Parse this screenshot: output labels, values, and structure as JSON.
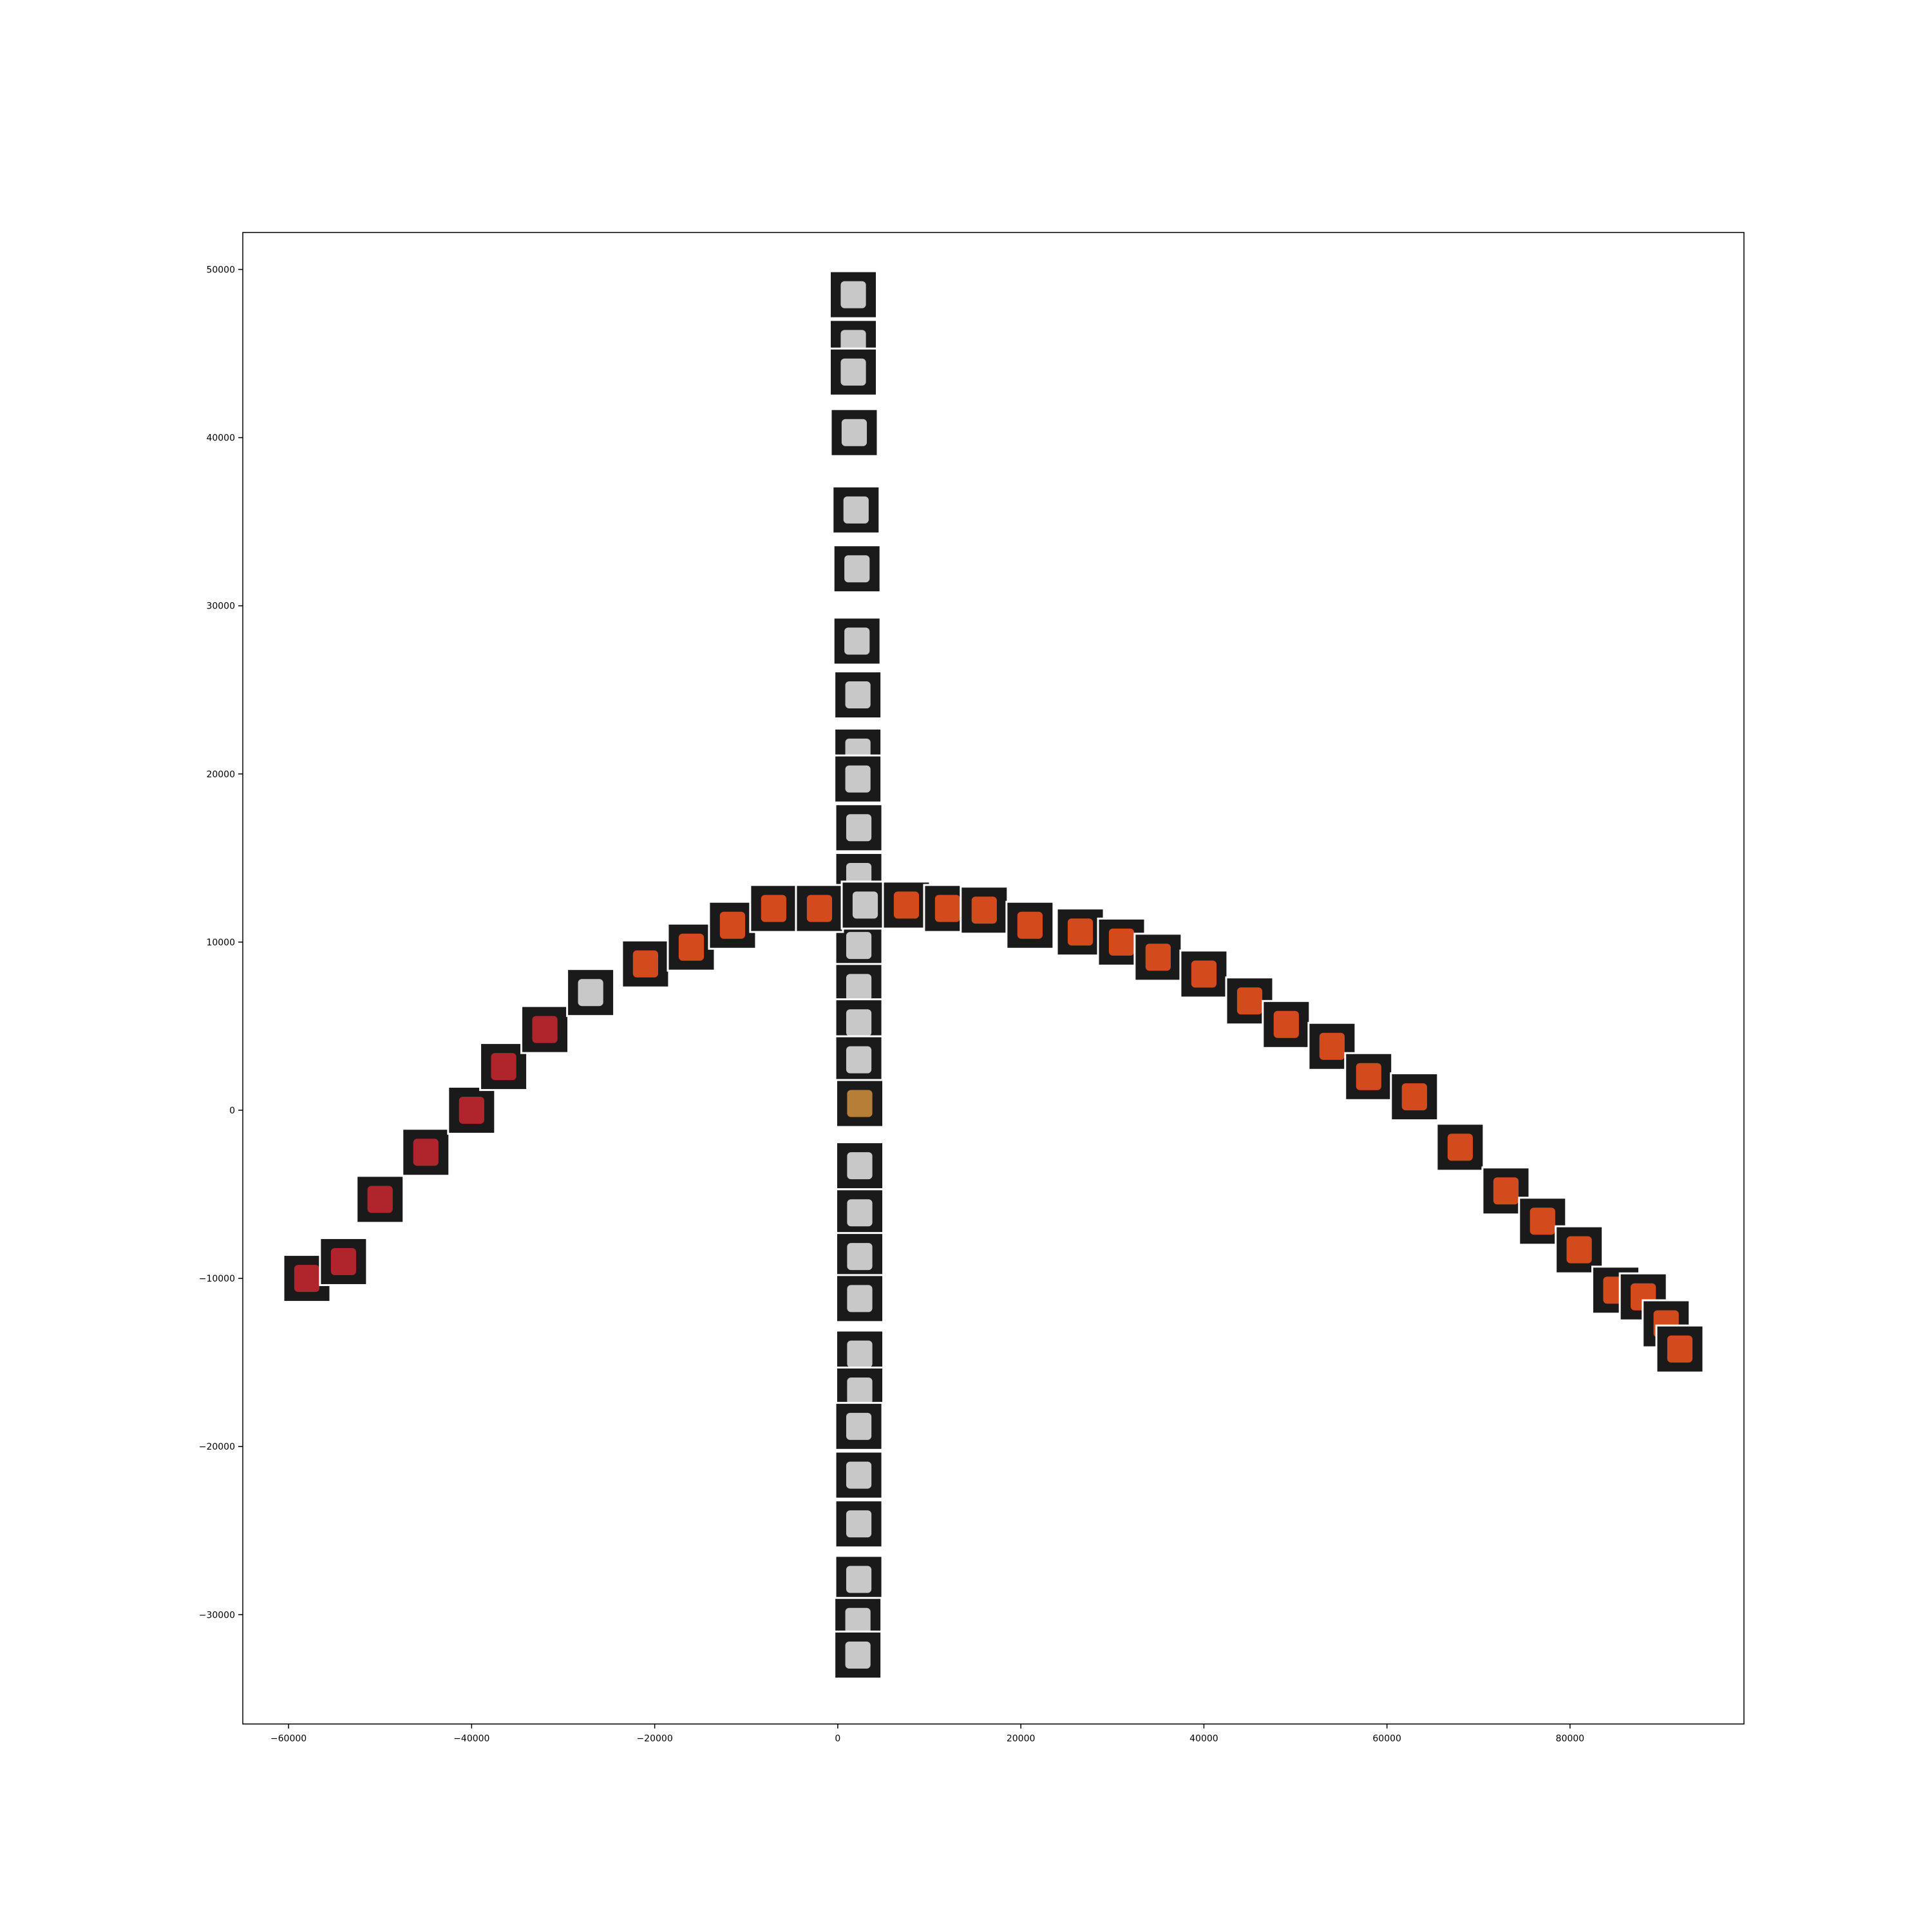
{
  "chart_data": {
    "type": "scatter",
    "title": "",
    "xlabel": "",
    "ylabel": "",
    "xlim": [
      -65000,
      99000
    ],
    "ylim": [
      -36500,
      52200
    ],
    "x_ticks": [
      -60000,
      -40000,
      -20000,
      0,
      20000,
      40000,
      60000,
      80000
    ],
    "x_tick_labels": [
      "−60000",
      "−40000",
      "−20000",
      "0",
      "20000",
      "40000",
      "60000",
      "80000"
    ],
    "y_ticks": [
      -30000,
      -20000,
      -10000,
      0,
      10000,
      20000,
      30000,
      40000,
      50000
    ],
    "y_tick_labels": [
      "−30000",
      "−20000",
      "−10000",
      "0",
      "10000",
      "20000",
      "30000",
      "40000",
      "50000"
    ],
    "grid": false,
    "legend": "none",
    "series": [
      {
        "marker": "image-thumbnail-box",
        "points": [
          {
            "x": 1700,
            "y": 48500
          },
          {
            "x": 1700,
            "y": 45600
          },
          {
            "x": 1700,
            "y": 43900
          },
          {
            "x": 1800,
            "y": 40300
          },
          {
            "x": 2000,
            "y": 35700
          },
          {
            "x": 2100,
            "y": 32200
          },
          {
            "x": 2100,
            "y": 27900
          },
          {
            "x": 2200,
            "y": 24700
          },
          {
            "x": 2200,
            "y": 21300
          },
          {
            "x": 2200,
            "y": 19700
          },
          {
            "x": 2300,
            "y": 16800
          },
          {
            "x": 2300,
            "y": 13900
          },
          {
            "x": 2300,
            "y": 9800
          },
          {
            "x": 2300,
            "y": 7300
          },
          {
            "x": 2300,
            "y": 5200
          },
          {
            "x": 2300,
            "y": 3000
          },
          {
            "x": 2400,
            "y": 400
          },
          {
            "x": 2400,
            "y": -3300
          },
          {
            "x": 2400,
            "y": -6100
          },
          {
            "x": 2400,
            "y": -8700
          },
          {
            "x": 2400,
            "y": -11200
          },
          {
            "x": 2400,
            "y": -14500
          },
          {
            "x": 2400,
            "y": -16700
          },
          {
            "x": 2300,
            "y": -18800
          },
          {
            "x": 2300,
            "y": -21700
          },
          {
            "x": 2300,
            "y": -24600
          },
          {
            "x": 2300,
            "y": -27900
          },
          {
            "x": 2200,
            "y": -30400
          },
          {
            "x": 2200,
            "y": -32400
          },
          {
            "x": -58000,
            "y": -10000
          },
          {
            "x": -54000,
            "y": -9000
          },
          {
            "x": -50000,
            "y": -5300
          },
          {
            "x": -45000,
            "y": -2500
          },
          {
            "x": -40000,
            "y": 0
          },
          {
            "x": -36500,
            "y": 2600
          },
          {
            "x": -32000,
            "y": 4800
          },
          {
            "x": -27000,
            "y": 7000
          },
          {
            "x": -21000,
            "y": 8700
          },
          {
            "x": -16000,
            "y": 9700
          },
          {
            "x": -11500,
            "y": 11000
          },
          {
            "x": -7000,
            "y": 12000
          },
          {
            "x": -2000,
            "y": 12000
          },
          {
            "x": 3000,
            "y": 12200
          },
          {
            "x": 7500,
            "y": 12200
          },
          {
            "x": 12000,
            "y": 12000
          },
          {
            "x": 16000,
            "y": 11900
          },
          {
            "x": 21000,
            "y": 11000
          },
          {
            "x": 26500,
            "y": 10600
          },
          {
            "x": 31000,
            "y": 10000
          },
          {
            "x": 35000,
            "y": 9100
          },
          {
            "x": 40000,
            "y": 8100
          },
          {
            "x": 45000,
            "y": 6500
          },
          {
            "x": 49000,
            "y": 5100
          },
          {
            "x": 54000,
            "y": 3800
          },
          {
            "x": 58000,
            "y": 2000
          },
          {
            "x": 63000,
            "y": 800
          },
          {
            "x": 68000,
            "y": -2200
          },
          {
            "x": 73000,
            "y": -4800
          },
          {
            "x": 77000,
            "y": -6600
          },
          {
            "x": 81000,
            "y": -8300
          },
          {
            "x": 85000,
            "y": -10700
          },
          {
            "x": 88000,
            "y": -11100
          },
          {
            "x": 90500,
            "y": -12700
          },
          {
            "x": 92000,
            "y": -14200
          }
        ]
      }
    ]
  }
}
